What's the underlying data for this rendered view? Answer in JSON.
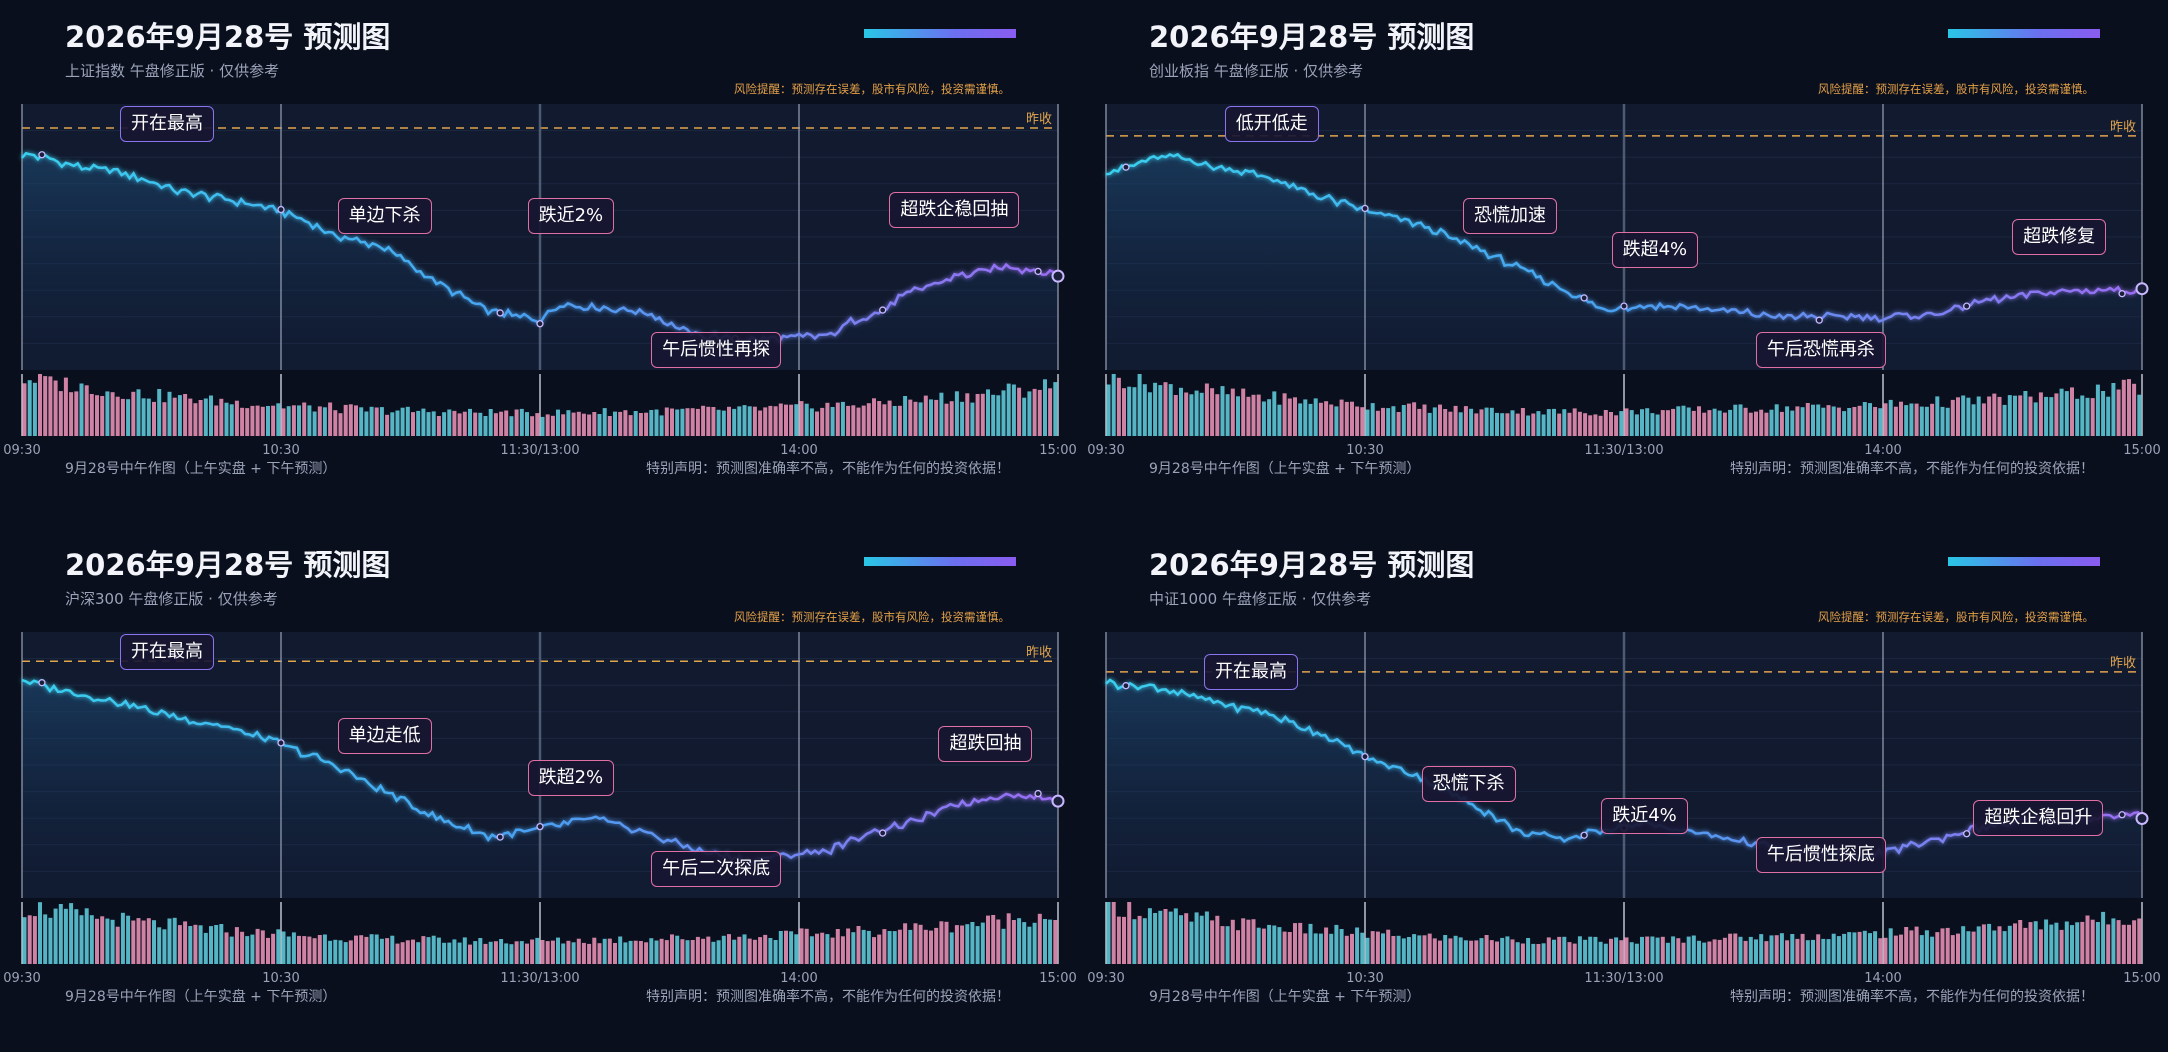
{
  "panels": [
    {
      "title": "2026年9月28号 预测图",
      "subtitle": "上证指数 午盘修正版 · 仅供参考",
      "risk_note": "风险提醒：预测存在误差，股市有风险，投资需谨慎。",
      "footer_left": "9月28号中午作图（上午实盘 + 下午预测）",
      "footer_right": "特别声明：预测图准确率不高，不能作为任何的投资依据！",
      "ref_label": "昨收",
      "chart_data": {
        "type": "line",
        "x_ticks": [
          "09:30",
          "10:30",
          "11:30/13:00",
          "14:00",
          "15:00"
        ],
        "price_path": [
          [
            0,
            0.81
          ],
          [
            0.02,
            0.8
          ],
          [
            0.06,
            0.76
          ],
          [
            0.1,
            0.74
          ],
          [
            0.15,
            0.67
          ],
          [
            0.2,
            0.64
          ],
          [
            0.25,
            0.6
          ],
          [
            0.3,
            0.51
          ],
          [
            0.35,
            0.46
          ],
          [
            0.4,
            0.33
          ],
          [
            0.45,
            0.22
          ],
          [
            0.5,
            0.19
          ],
          [
            0.52,
            0.25
          ],
          [
            0.6,
            0.22
          ],
          [
            0.65,
            0.13
          ],
          [
            0.7,
            0.11
          ],
          [
            0.78,
            0.13
          ],
          [
            0.8,
            0.18
          ],
          [
            0.83,
            0.22
          ],
          [
            0.85,
            0.28
          ],
          [
            0.9,
            0.35
          ],
          [
            0.95,
            0.39
          ],
          [
            1.0,
            0.36
          ]
        ],
        "reference_line_y": 0.91,
        "volumes": [
          0.95,
          0.86,
          0.8,
          0.74,
          0.7,
          0.66,
          0.62,
          0.58,
          0.55,
          0.52,
          0.49,
          0.47,
          0.45,
          0.43,
          0.42,
          0.41,
          0.4,
          0.39,
          0.39,
          0.38,
          0.38,
          0.39,
          0.4,
          0.4,
          0.41,
          0.42,
          0.43,
          0.44,
          0.45,
          0.47,
          0.49,
          0.51,
          0.53,
          0.56,
          0.59,
          0.63,
          0.67,
          0.71,
          0.76,
          0.82
        ],
        "annotations": [
          {
            "text": "开在最高",
            "x": 0.14,
            "y": 0.97,
            "color": "purple"
          },
          {
            "text": "单边下杀",
            "x": 0.35,
            "y": 0.58,
            "color": "pink"
          },
          {
            "text": "跌近2%",
            "x": 0.53,
            "y": 0.58,
            "color": "pink"
          },
          {
            "text": "午后惯性再探",
            "x": 0.67,
            "y": 0.04,
            "color": "pink"
          },
          {
            "text": "超跌企稳回抽",
            "x": 0.9,
            "y": 0.6,
            "color": "pink"
          }
        ]
      }
    },
    {
      "title": "2026年9月28号 预测图",
      "subtitle": "创业板指 午盘修正版 · 仅供参考",
      "risk_note": "风险提醒：预测存在误差，股市有风险，投资需谨慎。",
      "footer_left": "9月28号中午作图（上午实盘 + 下午预测）",
      "footer_right": "特别声明：预测图准确率不高，不能作为任何的投资依据！",
      "ref_label": "昨收",
      "chart_data": {
        "type": "line",
        "x_ticks": [
          "09:30",
          "10:30",
          "11:30/13:00",
          "14:00",
          "15:00"
        ],
        "price_path": [
          [
            0,
            0.75
          ],
          [
            0.02,
            0.76
          ],
          [
            0.05,
            0.8
          ],
          [
            0.07,
            0.8
          ],
          [
            0.1,
            0.77
          ],
          [
            0.15,
            0.73
          ],
          [
            0.2,
            0.66
          ],
          [
            0.25,
            0.6
          ],
          [
            0.3,
            0.55
          ],
          [
            0.35,
            0.47
          ],
          [
            0.4,
            0.38
          ],
          [
            0.45,
            0.29
          ],
          [
            0.48,
            0.22
          ],
          [
            0.5,
            0.24
          ],
          [
            0.55,
            0.24
          ],
          [
            0.6,
            0.22
          ],
          [
            0.65,
            0.2
          ],
          [
            0.7,
            0.2
          ],
          [
            0.75,
            0.2
          ],
          [
            0.8,
            0.21
          ],
          [
            0.85,
            0.26
          ],
          [
            0.9,
            0.29
          ],
          [
            0.95,
            0.3
          ],
          [
            1.0,
            0.3
          ]
        ],
        "reference_line_y": 0.88,
        "volumes": [
          0.95,
          0.88,
          0.82,
          0.76,
          0.71,
          0.67,
          0.63,
          0.59,
          0.56,
          0.53,
          0.5,
          0.48,
          0.46,
          0.44,
          0.43,
          0.42,
          0.41,
          0.4,
          0.4,
          0.4,
          0.41,
          0.42,
          0.43,
          0.44,
          0.45,
          0.46,
          0.47,
          0.48,
          0.49,
          0.5,
          0.52,
          0.54,
          0.56,
          0.58,
          0.61,
          0.64,
          0.67,
          0.71,
          0.75,
          0.8
        ],
        "annotations": [
          {
            "text": "低开低走",
            "x": 0.16,
            "y": 0.97,
            "color": "purple"
          },
          {
            "text": "恐慌加速",
            "x": 0.39,
            "y": 0.58,
            "color": "pink"
          },
          {
            "text": "跌超4%",
            "x": 0.53,
            "y": 0.45,
            "color": "pink"
          },
          {
            "text": "午后恐慌再杀",
            "x": 0.69,
            "y": 0.04,
            "color": "pink"
          },
          {
            "text": "超跌修复",
            "x": 0.92,
            "y": 0.5,
            "color": "pink"
          }
        ]
      }
    },
    {
      "title": "2026年9月28号 预测图",
      "subtitle": "沪深300 午盘修正版 · 仅供参考",
      "risk_note": "风险提醒：预测存在误差，股市有风险，投资需谨慎。",
      "footer_left": "9月28号中午作图（上午实盘 + 下午预测）",
      "footer_right": "特别声明：预测图准确率不高，不能作为任何的投资依据！",
      "ref_label": "昨收",
      "chart_data": {
        "type": "line",
        "x_ticks": [
          "09:30",
          "10:30",
          "11:30/13:00",
          "14:00",
          "15:00"
        ],
        "price_path": [
          [
            0,
            0.82
          ],
          [
            0.02,
            0.8
          ],
          [
            0.05,
            0.77
          ],
          [
            0.1,
            0.73
          ],
          [
            0.15,
            0.68
          ],
          [
            0.2,
            0.64
          ],
          [
            0.25,
            0.58
          ],
          [
            0.3,
            0.5
          ],
          [
            0.35,
            0.4
          ],
          [
            0.4,
            0.3
          ],
          [
            0.45,
            0.23
          ],
          [
            0.5,
            0.26
          ],
          [
            0.55,
            0.3
          ],
          [
            0.6,
            0.25
          ],
          [
            0.65,
            0.18
          ],
          [
            0.7,
            0.14
          ],
          [
            0.78,
            0.18
          ],
          [
            0.82,
            0.25
          ],
          [
            0.85,
            0.27
          ],
          [
            0.9,
            0.35
          ],
          [
            0.95,
            0.39
          ],
          [
            1.0,
            0.37
          ]
        ],
        "reference_line_y": 0.89,
        "volumes": [
          0.92,
          0.86,
          0.8,
          0.74,
          0.69,
          0.65,
          0.61,
          0.57,
          0.54,
          0.51,
          0.48,
          0.46,
          0.44,
          0.42,
          0.41,
          0.4,
          0.39,
          0.38,
          0.38,
          0.38,
          0.38,
          0.39,
          0.4,
          0.41,
          0.42,
          0.43,
          0.44,
          0.45,
          0.46,
          0.48,
          0.5,
          0.52,
          0.54,
          0.57,
          0.6,
          0.63,
          0.67,
          0.71,
          0.75,
          0.8
        ],
        "annotations": [
          {
            "text": "开在最高",
            "x": 0.14,
            "y": 0.97,
            "color": "purple"
          },
          {
            "text": "单边走低",
            "x": 0.35,
            "y": 0.61,
            "color": "pink"
          },
          {
            "text": "跌超2%",
            "x": 0.53,
            "y": 0.45,
            "color": "pink"
          },
          {
            "text": "午后二次探底",
            "x": 0.67,
            "y": 0.11,
            "color": "pink"
          },
          {
            "text": "超跌回抽",
            "x": 0.93,
            "y": 0.58,
            "color": "pink"
          }
        ]
      }
    },
    {
      "title": "2026年9月28号 预测图",
      "subtitle": "中证1000 午盘修正版 · 仅供参考",
      "risk_note": "风险提醒：预测存在误差，股市有风险，投资需谨慎。",
      "footer_left": "9月28号中午作图（上午实盘 + 下午预测）",
      "footer_right": "特别声明：预测图准确率不高，不能作为任何的投资依据！",
      "ref_label": "昨收",
      "chart_data": {
        "type": "line",
        "x_ticks": [
          "09:30",
          "10:30",
          "11:30/13:00",
          "14:00",
          "15:00"
        ],
        "price_path": [
          [
            0,
            0.81
          ],
          [
            0.02,
            0.8
          ],
          [
            0.05,
            0.79
          ],
          [
            0.1,
            0.74
          ],
          [
            0.15,
            0.7
          ],
          [
            0.2,
            0.63
          ],
          [
            0.25,
            0.53
          ],
          [
            0.3,
            0.46
          ],
          [
            0.35,
            0.36
          ],
          [
            0.4,
            0.25
          ],
          [
            0.44,
            0.22
          ],
          [
            0.48,
            0.26
          ],
          [
            0.52,
            0.28
          ],
          [
            0.58,
            0.24
          ],
          [
            0.63,
            0.2
          ],
          [
            0.68,
            0.17
          ],
          [
            0.74,
            0.16
          ],
          [
            0.78,
            0.2
          ],
          [
            0.82,
            0.24
          ],
          [
            0.85,
            0.27
          ],
          [
            0.9,
            0.29
          ],
          [
            0.95,
            0.3
          ],
          [
            1.0,
            0.31
          ]
        ],
        "reference_line_y": 0.85,
        "volumes": [
          0.94,
          0.87,
          0.81,
          0.75,
          0.7,
          0.66,
          0.62,
          0.58,
          0.55,
          0.52,
          0.49,
          0.47,
          0.45,
          0.43,
          0.42,
          0.41,
          0.4,
          0.39,
          0.39,
          0.39,
          0.4,
          0.41,
          0.42,
          0.43,
          0.44,
          0.45,
          0.46,
          0.47,
          0.48,
          0.5,
          0.52,
          0.54,
          0.56,
          0.58,
          0.61,
          0.64,
          0.67,
          0.7,
          0.74,
          0.78
        ],
        "annotations": [
          {
            "text": "开在最高",
            "x": 0.14,
            "y": 0.85,
            "color": "purple"
          },
          {
            "text": "恐慌下杀",
            "x": 0.35,
            "y": 0.43,
            "color": "pink"
          },
          {
            "text": "跌近4%",
            "x": 0.52,
            "y": 0.31,
            "color": "pink"
          },
          {
            "text": "午后惯性探底",
            "x": 0.69,
            "y": 0.16,
            "color": "pink"
          },
          {
            "text": "超跌企稳回升",
            "x": 0.9,
            "y": 0.3,
            "color": "pink"
          }
        ]
      }
    }
  ]
}
